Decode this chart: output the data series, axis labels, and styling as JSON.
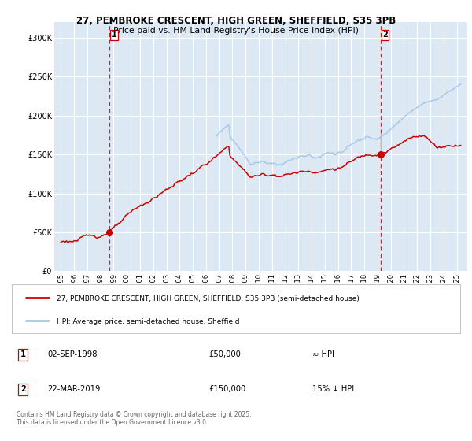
{
  "title_line1": "27, PEMBROKE CRESCENT, HIGH GREEN, SHEFFIELD, S35 3PB",
  "title_line2": "Price paid vs. HM Land Registry's House Price Index (HPI)",
  "bg_color": "#dce9f5",
  "red_line_color": "#cc0000",
  "blue_line_color": "#a8c8e8",
  "marker_color": "#cc0000",
  "dashed_line_color": "#cc0000",
  "ylim": [
    0,
    320000
  ],
  "xlim_start": 1994.5,
  "xlim_end": 2025.8,
  "sale1_x": 1998.67,
  "sale1_y": 50000,
  "sale2_x": 2019.22,
  "sale2_y": 150000,
  "hpi_at_sale2": 176000,
  "legend_label1": "27, PEMBROKE CRESCENT, HIGH GREEN, SHEFFIELD, S35 3PB (semi-detached house)",
  "legend_label2": "HPI: Average price, semi-detached house, Sheffield",
  "table_row1": [
    "1",
    "02-SEP-1998",
    "£50,000",
    "≈ HPI"
  ],
  "table_row2": [
    "2",
    "22-MAR-2019",
    "£150,000",
    "15% ↓ HPI"
  ],
  "copyright_text": "Contains HM Land Registry data © Crown copyright and database right 2025.\nThis data is licensed under the Open Government Licence v3.0.",
  "ytick_labels": [
    "£0",
    "£50K",
    "£100K",
    "£150K",
    "£200K",
    "£250K",
    "£300K"
  ],
  "ytick_values": [
    0,
    50000,
    100000,
    150000,
    200000,
    250000,
    300000
  ]
}
